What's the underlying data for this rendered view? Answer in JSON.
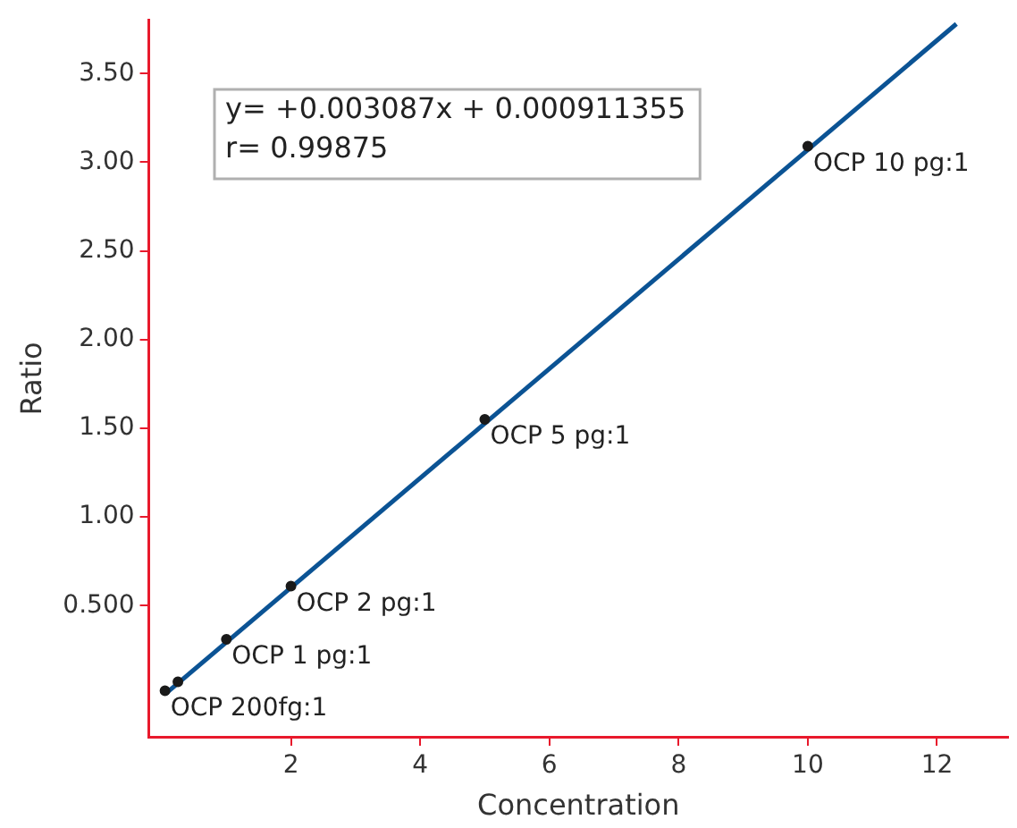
{
  "chart_data": {
    "type": "scatter",
    "xlabel": "Concentration",
    "ylabel": "Ratio",
    "xlim": [
      -0.2,
      13.1
    ],
    "ylim": [
      -0.24,
      3.8
    ],
    "xticks": [
      2,
      4,
      6,
      8,
      10,
      12
    ],
    "yticks": [
      {
        "value": 0.5,
        "label": "0.500"
      },
      {
        "value": 1,
        "label": "1.00"
      },
      {
        "value": 1.5,
        "label": "1.50"
      },
      {
        "value": 2,
        "label": "2.00"
      },
      {
        "value": 2.5,
        "label": "2.50"
      },
      {
        "value": 3,
        "label": "3.00"
      },
      {
        "value": 3.5,
        "label": "3.50"
      }
    ],
    "grid": false,
    "legend": false,
    "marker": "circle",
    "series": [
      {
        "color": "#1a1a1a",
        "x": [
          0.05,
          0.25,
          1,
          2,
          5,
          10
        ],
        "values": [
          0.02,
          0.07,
          0.31,
          0.61,
          1.55,
          3.09
        ]
      },
      {
        "type": "line",
        "color": "#0b5394",
        "x": [
          0.05,
          12.3
        ],
        "values": [
          0.0,
          3.78
        ],
        "line_style": "solid",
        "marker": "none"
      }
    ],
    "annotations": [
      "y= +0.003087x + 0.000911355",
      "r= 0.99875",
      {
        "text": "OCP 200fg:1",
        "x": 0.05,
        "y": 0.02
      },
      {
        "text": "OCP 1 pg:1",
        "x": 1,
        "y": 0.31
      },
      {
        "text": "OCP 2 pg:1",
        "x": 2,
        "y": 0.61
      },
      {
        "text": "OCP 5 pg:1",
        "x": 5,
        "y": 1.55
      },
      {
        "text": "OCP 10 pg:1",
        "x": 10,
        "y": 3.09
      }
    ]
  }
}
